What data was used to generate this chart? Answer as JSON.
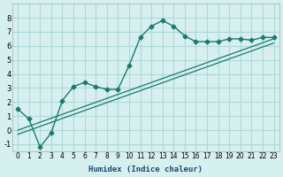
{
  "xlabel": "Humidex (Indice chaleur)",
  "ylabel": "",
  "background_color": "#d6f0f0",
  "grid_color": "#b0d8d8",
  "line_color": "#1a7a6e",
  "xlim": [
    -0.5,
    23.5
  ],
  "ylim": [
    -1.5,
    9.0
  ],
  "xticks": [
    0,
    1,
    2,
    3,
    4,
    5,
    6,
    7,
    8,
    9,
    10,
    11,
    12,
    13,
    14,
    15,
    16,
    17,
    18,
    19,
    20,
    21,
    22,
    23
  ],
  "yticks": [
    -1,
    0,
    1,
    2,
    3,
    4,
    5,
    6,
    7,
    8
  ],
  "data_line": {
    "x": [
      0,
      1,
      2,
      3,
      4,
      5,
      6,
      7,
      8,
      9,
      10,
      11,
      12,
      13,
      14,
      15,
      16,
      17,
      18,
      19,
      20,
      21,
      22,
      23
    ],
    "y": [
      1.5,
      0.8,
      -1.2,
      -0.2,
      2.1,
      3.1,
      3.4,
      3.1,
      2.9,
      2.9,
      4.6,
      6.6,
      7.4,
      7.8,
      7.4,
      6.7,
      6.3,
      6.3,
      6.3,
      6.5,
      6.5,
      6.4,
      6.6,
      6.6
    ]
  },
  "line1": {
    "x": [
      0,
      23
    ],
    "y": [
      0.0,
      6.5
    ]
  },
  "line2": {
    "x": [
      0,
      23
    ],
    "y": [
      -0.3,
      6.2
    ]
  }
}
